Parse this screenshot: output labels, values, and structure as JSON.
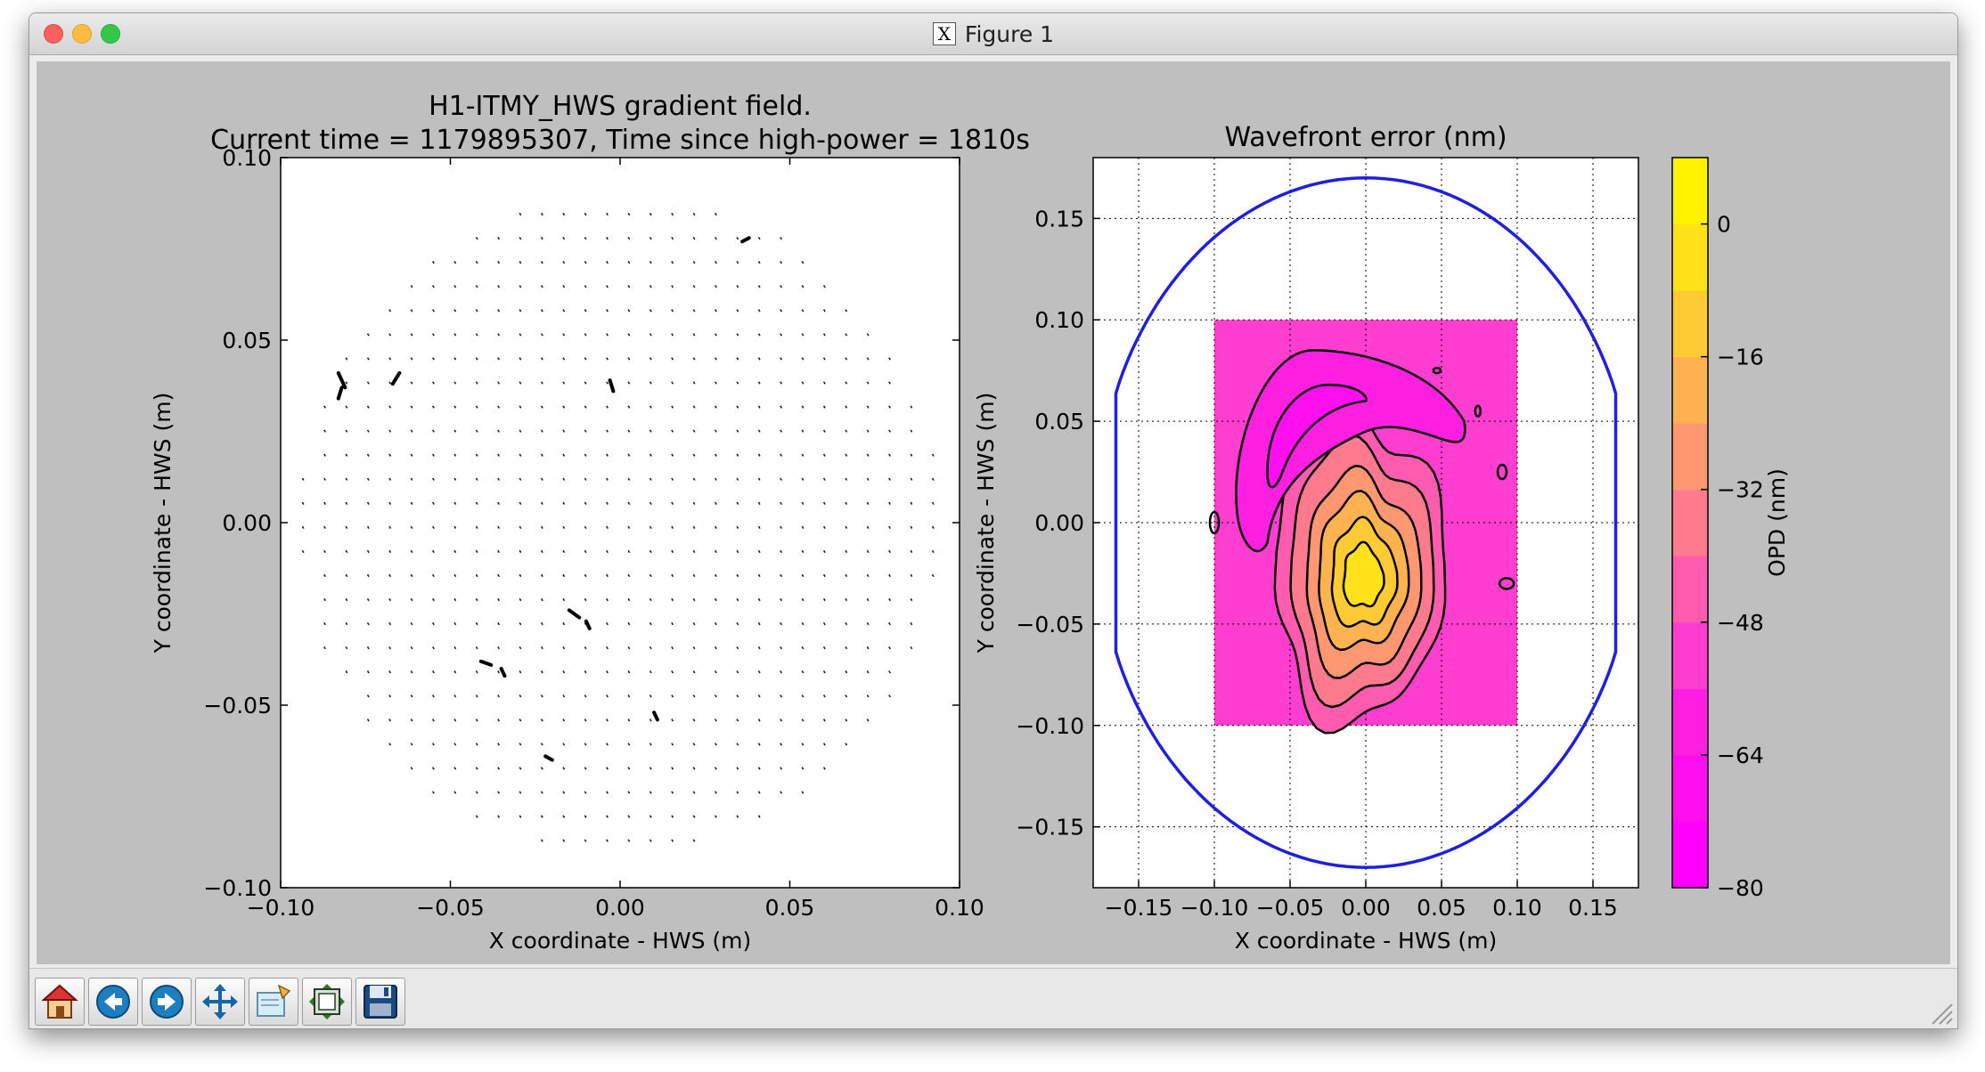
{
  "window": {
    "title": "Figure 1"
  },
  "toolbar": {
    "buttons": [
      {
        "name": "home-button",
        "icon": "home-icon"
      },
      {
        "name": "back-button",
        "icon": "back-arrow-icon"
      },
      {
        "name": "forward-button",
        "icon": "forward-arrow-icon"
      },
      {
        "name": "pan-button",
        "icon": "pan-arrows-icon"
      },
      {
        "name": "zoom-button",
        "icon": "zoom-rect-icon"
      },
      {
        "name": "subplots-button",
        "icon": "subplots-config-icon"
      },
      {
        "name": "save-button",
        "icon": "floppy-disk-icon"
      }
    ]
  },
  "chart_data": [
    {
      "type": "quiver",
      "title_line1": "H1-ITMY_HWS gradient field.",
      "title_line2": "Current time = 1179895307, Time since high-power = 1810s",
      "xlabel": "X coordinate - HWS (m)",
      "ylabel": "Y coordinate - HWS (m)",
      "xlim": [
        -0.1,
        0.1
      ],
      "ylim": [
        -0.1,
        0.1
      ],
      "xticks": [
        "−0.10",
        "−0.05",
        "0.00",
        "0.05",
        "0.10"
      ],
      "yticks": [
        "−0.10",
        "−0.05",
        "0.00",
        "0.05",
        "0.10"
      ],
      "grid": false
    },
    {
      "type": "contour",
      "title": "Wavefront error (nm)",
      "xlabel": "X coordinate - HWS (m)",
      "ylabel": "Y coordinate - HWS (m)",
      "xlim": [
        -0.18,
        0.18
      ],
      "ylim": [
        -0.18,
        0.18
      ],
      "xticks": [
        "−0.15",
        "−0.10",
        "−0.05",
        "0.00",
        "0.05",
        "0.10",
        "0.15"
      ],
      "yticks": [
        "−0.15",
        "−0.10",
        "−0.05",
        "0.00",
        "0.05",
        "0.10",
        "0.15"
      ],
      "grid": true,
      "data_region": {
        "x": [
          -0.1,
          0.1
        ],
        "y": [
          -0.1,
          0.1
        ]
      },
      "aperture_ellipse": {
        "cx": 0.0,
        "cy": 0.0,
        "rx": 0.165,
        "ry": 0.17,
        "color": "#1f1fe0"
      },
      "peak": {
        "x": -0.005,
        "y": -0.025
      },
      "colorbar": {
        "label": "OPD (nm)",
        "ticks": [
          "0",
          "−16",
          "−32",
          "−48",
          "−64",
          "−80"
        ],
        "range": [
          -80,
          8
        ],
        "colors": [
          "#ff00ff",
          "#ff0ff0",
          "#ff1fe0",
          "#ff3ecf",
          "#ff5cb0",
          "#ff7a8c",
          "#ff9870",
          "#ffb350",
          "#ffcb34",
          "#ffe21a",
          "#fff300"
        ]
      }
    }
  ]
}
